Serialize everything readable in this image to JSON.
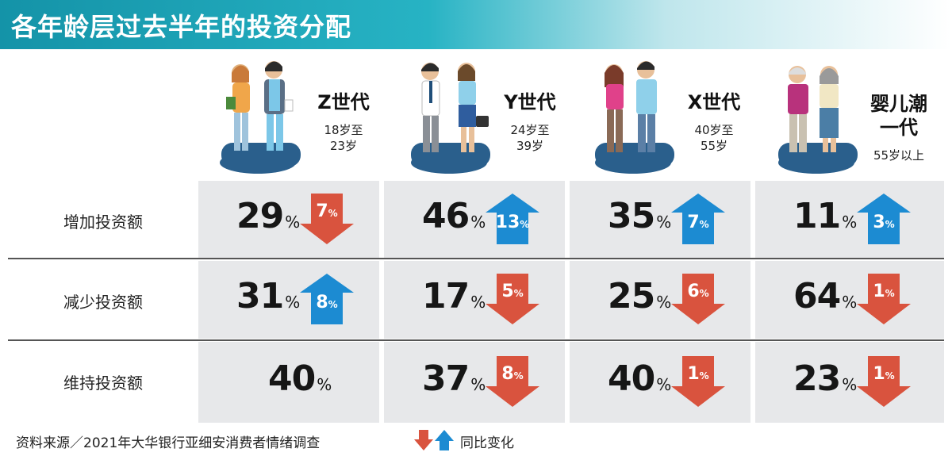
{
  "title": "各年龄层过去半年的投资分配",
  "generations": [
    {
      "name": "Z世代",
      "age": "18岁至\n23岁"
    },
    {
      "name": "Y世代",
      "age": "24岁至\n39岁"
    },
    {
      "name": "X世代",
      "age": "40岁至\n55岁"
    },
    {
      "name": "婴儿潮\n一代",
      "age": "55岁以上"
    }
  ],
  "row_labels": [
    "增加投资额",
    "减少投资额",
    "维持投资额"
  ],
  "percent_sign": "%",
  "colors": {
    "up": "#1c8bd2",
    "down": "#d9533e",
    "cell": "#e7e8ea",
    "title_bg": "#1493a8"
  },
  "chart_data": {
    "type": "table",
    "title": "各年龄层过去半年的投资分配",
    "columns": [
      "Z世代",
      "Y世代",
      "X世代",
      "婴儿潮一代"
    ],
    "rows": [
      {
        "label": "增加投资额",
        "values": [
          29,
          46,
          35,
          11
        ],
        "changes": [
          {
            "dir": "down",
            "value": 7
          },
          {
            "dir": "up",
            "value": 13
          },
          {
            "dir": "up",
            "value": 7
          },
          {
            "dir": "up",
            "value": 3
          }
        ]
      },
      {
        "label": "减少投资额",
        "values": [
          31,
          17,
          25,
          64
        ],
        "changes": [
          {
            "dir": "up",
            "value": 8
          },
          {
            "dir": "down",
            "value": 5
          },
          {
            "dir": "down",
            "value": 6
          },
          {
            "dir": "down",
            "value": 1
          }
        ]
      },
      {
        "label": "维持投资额",
        "values": [
          40,
          37,
          40,
          23
        ],
        "changes": [
          null,
          {
            "dir": "down",
            "value": 8
          },
          {
            "dir": "down",
            "value": 1
          },
          {
            "dir": "down",
            "value": 1
          }
        ]
      }
    ],
    "unit": "%"
  },
  "footer": {
    "source": "资料来源／2021年大华银行亚细安消费者情绪调查",
    "legend": "同比变化"
  }
}
